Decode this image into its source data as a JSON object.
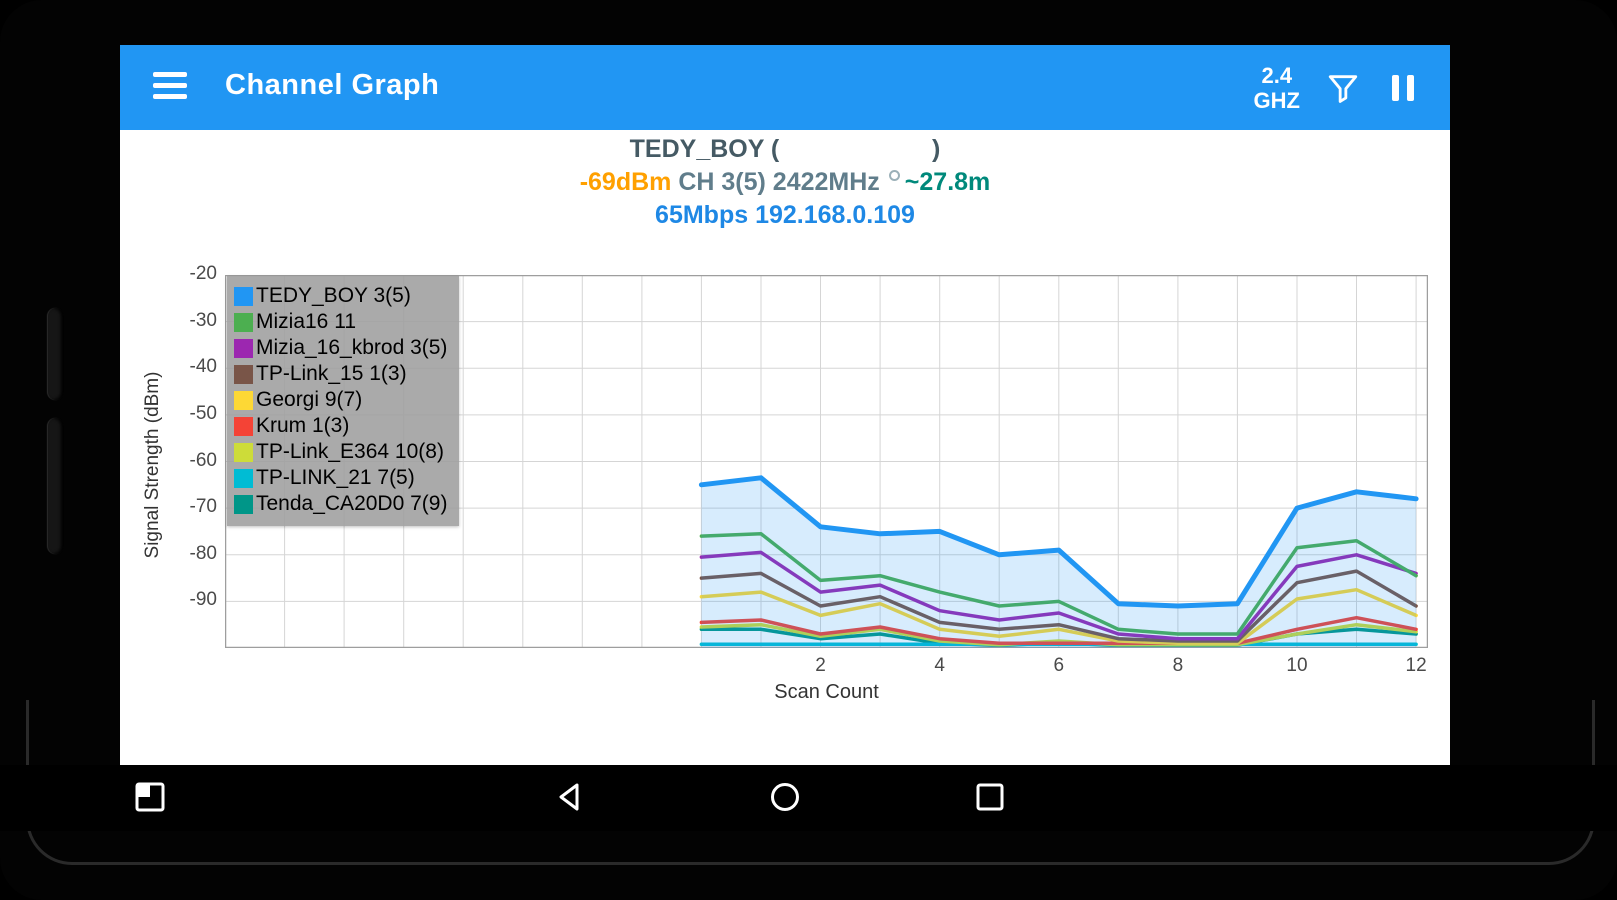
{
  "app_bar": {
    "title": "Channel Graph",
    "band_line1": "2.4",
    "band_line2": "GHZ",
    "bg_color": "#2196F3"
  },
  "connection": {
    "ssid_line": "TEDY_BOY (                      )",
    "strength": "-69dBm",
    "channel": " CH 3(5) 2422MHz",
    "distance": "~27.8m",
    "link_line": "65Mbps 192.168.0.109",
    "colors": {
      "title": "#455A64",
      "strength": "#FFA000",
      "channel": "#607D8B",
      "distance": "#00897B",
      "link": "#1E88E5"
    }
  },
  "chart_data": {
    "type": "line",
    "title": "",
    "xlabel": "Scan Count",
    "ylabel": "Signal Strength (dBm)",
    "xlim": [
      -8,
      12.2
    ],
    "ylim": [
      -100,
      -20
    ],
    "x_ticks": [
      2,
      4,
      6,
      8,
      10,
      12
    ],
    "y_ticks": [
      -20,
      -30,
      -40,
      -50,
      -60,
      -70,
      -80,
      -90
    ],
    "grid": true,
    "legend_position": "top-left",
    "x": [
      0,
      1,
      2,
      3,
      4,
      5,
      6,
      7,
      8,
      9,
      10,
      11,
      12
    ],
    "series": [
      {
        "name": "TEDY_BOY 3(5)",
        "color": "#2196F3",
        "fill": true,
        "width": 5,
        "values": [
          -65,
          -63.5,
          -74,
          -75.5,
          -75,
          -80,
          -79,
          -90.5,
          -91,
          -90.5,
          -70,
          -66.5,
          -68
        ]
      },
      {
        "name": "Mizia16 11",
        "color": "#4CAF50",
        "values": [
          -76,
          -75.5,
          -85.5,
          -84.5,
          -88,
          -91,
          -90,
          -96,
          -97,
          -97,
          -78.5,
          -77,
          -84.5
        ]
      },
      {
        "name": "Mizia_16_kbrod 3(5)",
        "color": "#9C27B0",
        "values": [
          -80.5,
          -79.5,
          -88,
          -86.5,
          -92,
          -94,
          -92.5,
          -97,
          -98,
          -98,
          -82.5,
          -80,
          -84
        ]
      },
      {
        "name": "TP-Link_15 1(3)",
        "color": "#795548",
        "values": [
          -85,
          -84,
          -91,
          -89,
          -94.5,
          -96,
          -95,
          -98,
          -98.5,
          -98.5,
          -86,
          -83.5,
          -91
        ]
      },
      {
        "name": "Georgi 9(7)",
        "color": "#FDD835",
        "values": [
          -89,
          -88,
          -93,
          -90.5,
          -96,
          -97.5,
          -96,
          -98.5,
          -99,
          -99,
          -89.5,
          -87.5,
          -93
        ]
      },
      {
        "name": "Krum 1(3)",
        "color": "#F44336",
        "values": [
          -94.5,
          -94,
          -97,
          -95.5,
          -98,
          -99,
          -99,
          -99,
          -99,
          -99,
          -96,
          -93.5,
          -96
        ]
      },
      {
        "name": "TP-Link_E364 10(8)",
        "color": "#CDDC39",
        "values": [
          -95.5,
          -95,
          -97.5,
          -96,
          -98.5,
          -99.3,
          -98.5,
          -99.3,
          -99.3,
          -99.3,
          -97,
          -95,
          -96.5
        ]
      },
      {
        "name": "TP-LINK_21 7(5)",
        "color": "#00BCD4",
        "values": [
          -99.2,
          -99.2,
          -99.2,
          -99.2,
          -99.2,
          -99.2,
          -99.2,
          -99.2,
          -99.2,
          -99.2,
          -99.2,
          -99.2,
          -99.2
        ]
      },
      {
        "name": "Tenda_CA20D0 7(9)",
        "color": "#009688",
        "values": [
          -96,
          -96,
          -98,
          -97,
          -99,
          -99.4,
          -99,
          -99.4,
          -99.4,
          -99.4,
          -97,
          -96,
          -97
        ]
      }
    ]
  },
  "nav_bar": {
    "icons": [
      "screenshot-icon",
      "back-icon",
      "home-icon",
      "recents-icon"
    ]
  }
}
